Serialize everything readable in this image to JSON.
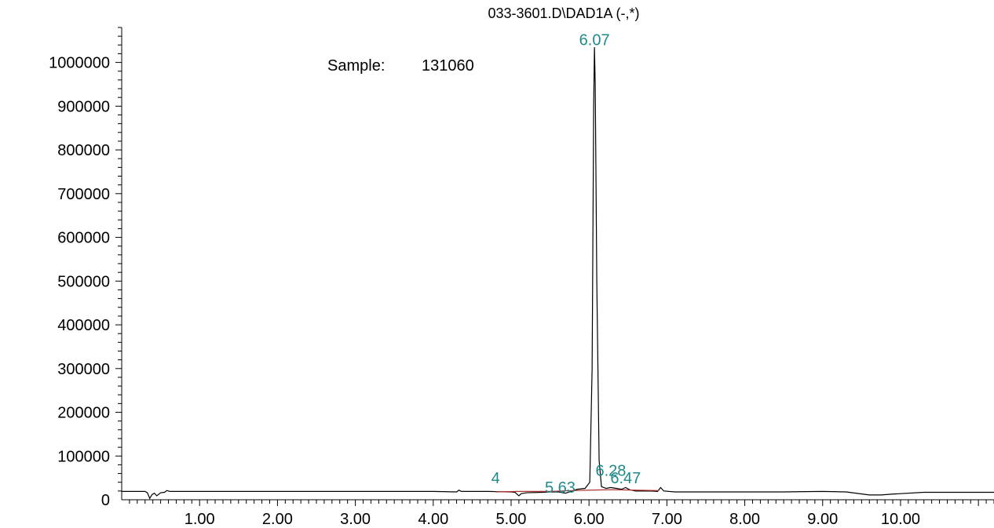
{
  "chart_data": {
    "type": "line",
    "title": "033-3601.D\\DAD1A (-,*)",
    "annotation": {
      "label": "Sample:",
      "value": "131060"
    },
    "xlim": [
      0.0,
      11.2
    ],
    "ylim": [
      0,
      1080000
    ],
    "x_ticks": [
      {
        "value": 1,
        "label": "1.00"
      },
      {
        "value": 2,
        "label": "2.00"
      },
      {
        "value": 3,
        "label": "3.00"
      },
      {
        "value": 4,
        "label": "4.00"
      },
      {
        "value": 5,
        "label": "5.00"
      },
      {
        "value": 6,
        "label": "6.00"
      },
      {
        "value": 7,
        "label": "7.00"
      },
      {
        "value": 8,
        "label": "8.00"
      },
      {
        "value": 9,
        "label": "9.00"
      },
      {
        "value": 10,
        "label": "10.00"
      }
    ],
    "y_ticks": [
      {
        "value": 0,
        "label": "0"
      },
      {
        "value": 100000,
        "label": "100000"
      },
      {
        "value": 200000,
        "label": "200000"
      },
      {
        "value": 300000,
        "label": "300000"
      },
      {
        "value": 400000,
        "label": "400000"
      },
      {
        "value": 500000,
        "label": "500000"
      },
      {
        "value": 600000,
        "label": "600000"
      },
      {
        "value": 700000,
        "label": "700000"
      },
      {
        "value": 800000,
        "label": "800000"
      },
      {
        "value": 900000,
        "label": "900000"
      },
      {
        "value": 1000000,
        "label": "1000000"
      }
    ],
    "series": [
      {
        "color": "#000000",
        "points": [
          [
            0.0,
            19000
          ],
          [
            0.3,
            19000
          ],
          [
            0.33,
            16000
          ],
          [
            0.36,
            3000
          ],
          [
            0.39,
            12000
          ],
          [
            0.42,
            15000
          ],
          [
            0.45,
            9000
          ],
          [
            0.5,
            16000
          ],
          [
            0.55,
            17000
          ],
          [
            0.58,
            21000
          ],
          [
            0.62,
            19000
          ],
          [
            1.0,
            19000
          ],
          [
            2.0,
            19000
          ],
          [
            3.0,
            19000
          ],
          [
            4.0,
            19000
          ],
          [
            4.3,
            18000
          ],
          [
            4.33,
            22000
          ],
          [
            4.36,
            19000
          ],
          [
            4.7,
            19000
          ],
          [
            5.0,
            18000
          ],
          [
            5.05,
            17000
          ],
          [
            5.1,
            9000
          ],
          [
            5.13,
            14000
          ],
          [
            5.2,
            16000
          ],
          [
            5.4,
            17000
          ],
          [
            5.5,
            18000
          ],
          [
            5.6,
            18000
          ],
          [
            5.7,
            15000
          ],
          [
            5.78,
            20000
          ],
          [
            5.85,
            24000
          ],
          [
            5.95,
            26000
          ],
          [
            6.01,
            40000
          ],
          [
            6.04,
            300000
          ],
          [
            6.06,
            900000
          ],
          [
            6.07,
            1035000
          ],
          [
            6.08,
            950000
          ],
          [
            6.1,
            500000
          ],
          [
            6.13,
            90000
          ],
          [
            6.16,
            30000
          ],
          [
            6.22,
            26000
          ],
          [
            6.28,
            28000
          ],
          [
            6.35,
            26000
          ],
          [
            6.42,
            24000
          ],
          [
            6.47,
            28000
          ],
          [
            6.52,
            23000
          ],
          [
            6.6,
            20000
          ],
          [
            6.8,
            20000
          ],
          [
            6.88,
            19000
          ],
          [
            6.92,
            28000
          ],
          [
            6.96,
            20000
          ],
          [
            7.1,
            18000
          ],
          [
            8.0,
            18000
          ],
          [
            8.5,
            18000
          ],
          [
            9.0,
            19000
          ],
          [
            9.3,
            18000
          ],
          [
            9.6,
            11000
          ],
          [
            9.75,
            11000
          ],
          [
            9.9,
            13000
          ],
          [
            10.3,
            17000
          ],
          [
            11.2,
            17000
          ]
        ]
      },
      {
        "color": "#b03030",
        "points": [
          [
            4.8,
            18000
          ],
          [
            5.1,
            19000
          ],
          [
            5.5,
            19000
          ],
          [
            5.8,
            21000
          ],
          [
            6.0,
            22000
          ],
          [
            6.3,
            23000
          ],
          [
            6.6,
            22000
          ],
          [
            6.9,
            21000
          ]
        ]
      }
    ],
    "peak_labels": [
      {
        "text": "4",
        "x": 4.8,
        "y": 38000
      },
      {
        "text": "5.63",
        "x": 5.63,
        "y": 16000
      },
      {
        "text": "6.07",
        "x": 6.07,
        "y": 1040000
      },
      {
        "text": "6.28",
        "x": 6.28,
        "y": 55000
      },
      {
        "text": "6.47",
        "x": 6.47,
        "y": 38000
      }
    ],
    "grid": false
  }
}
